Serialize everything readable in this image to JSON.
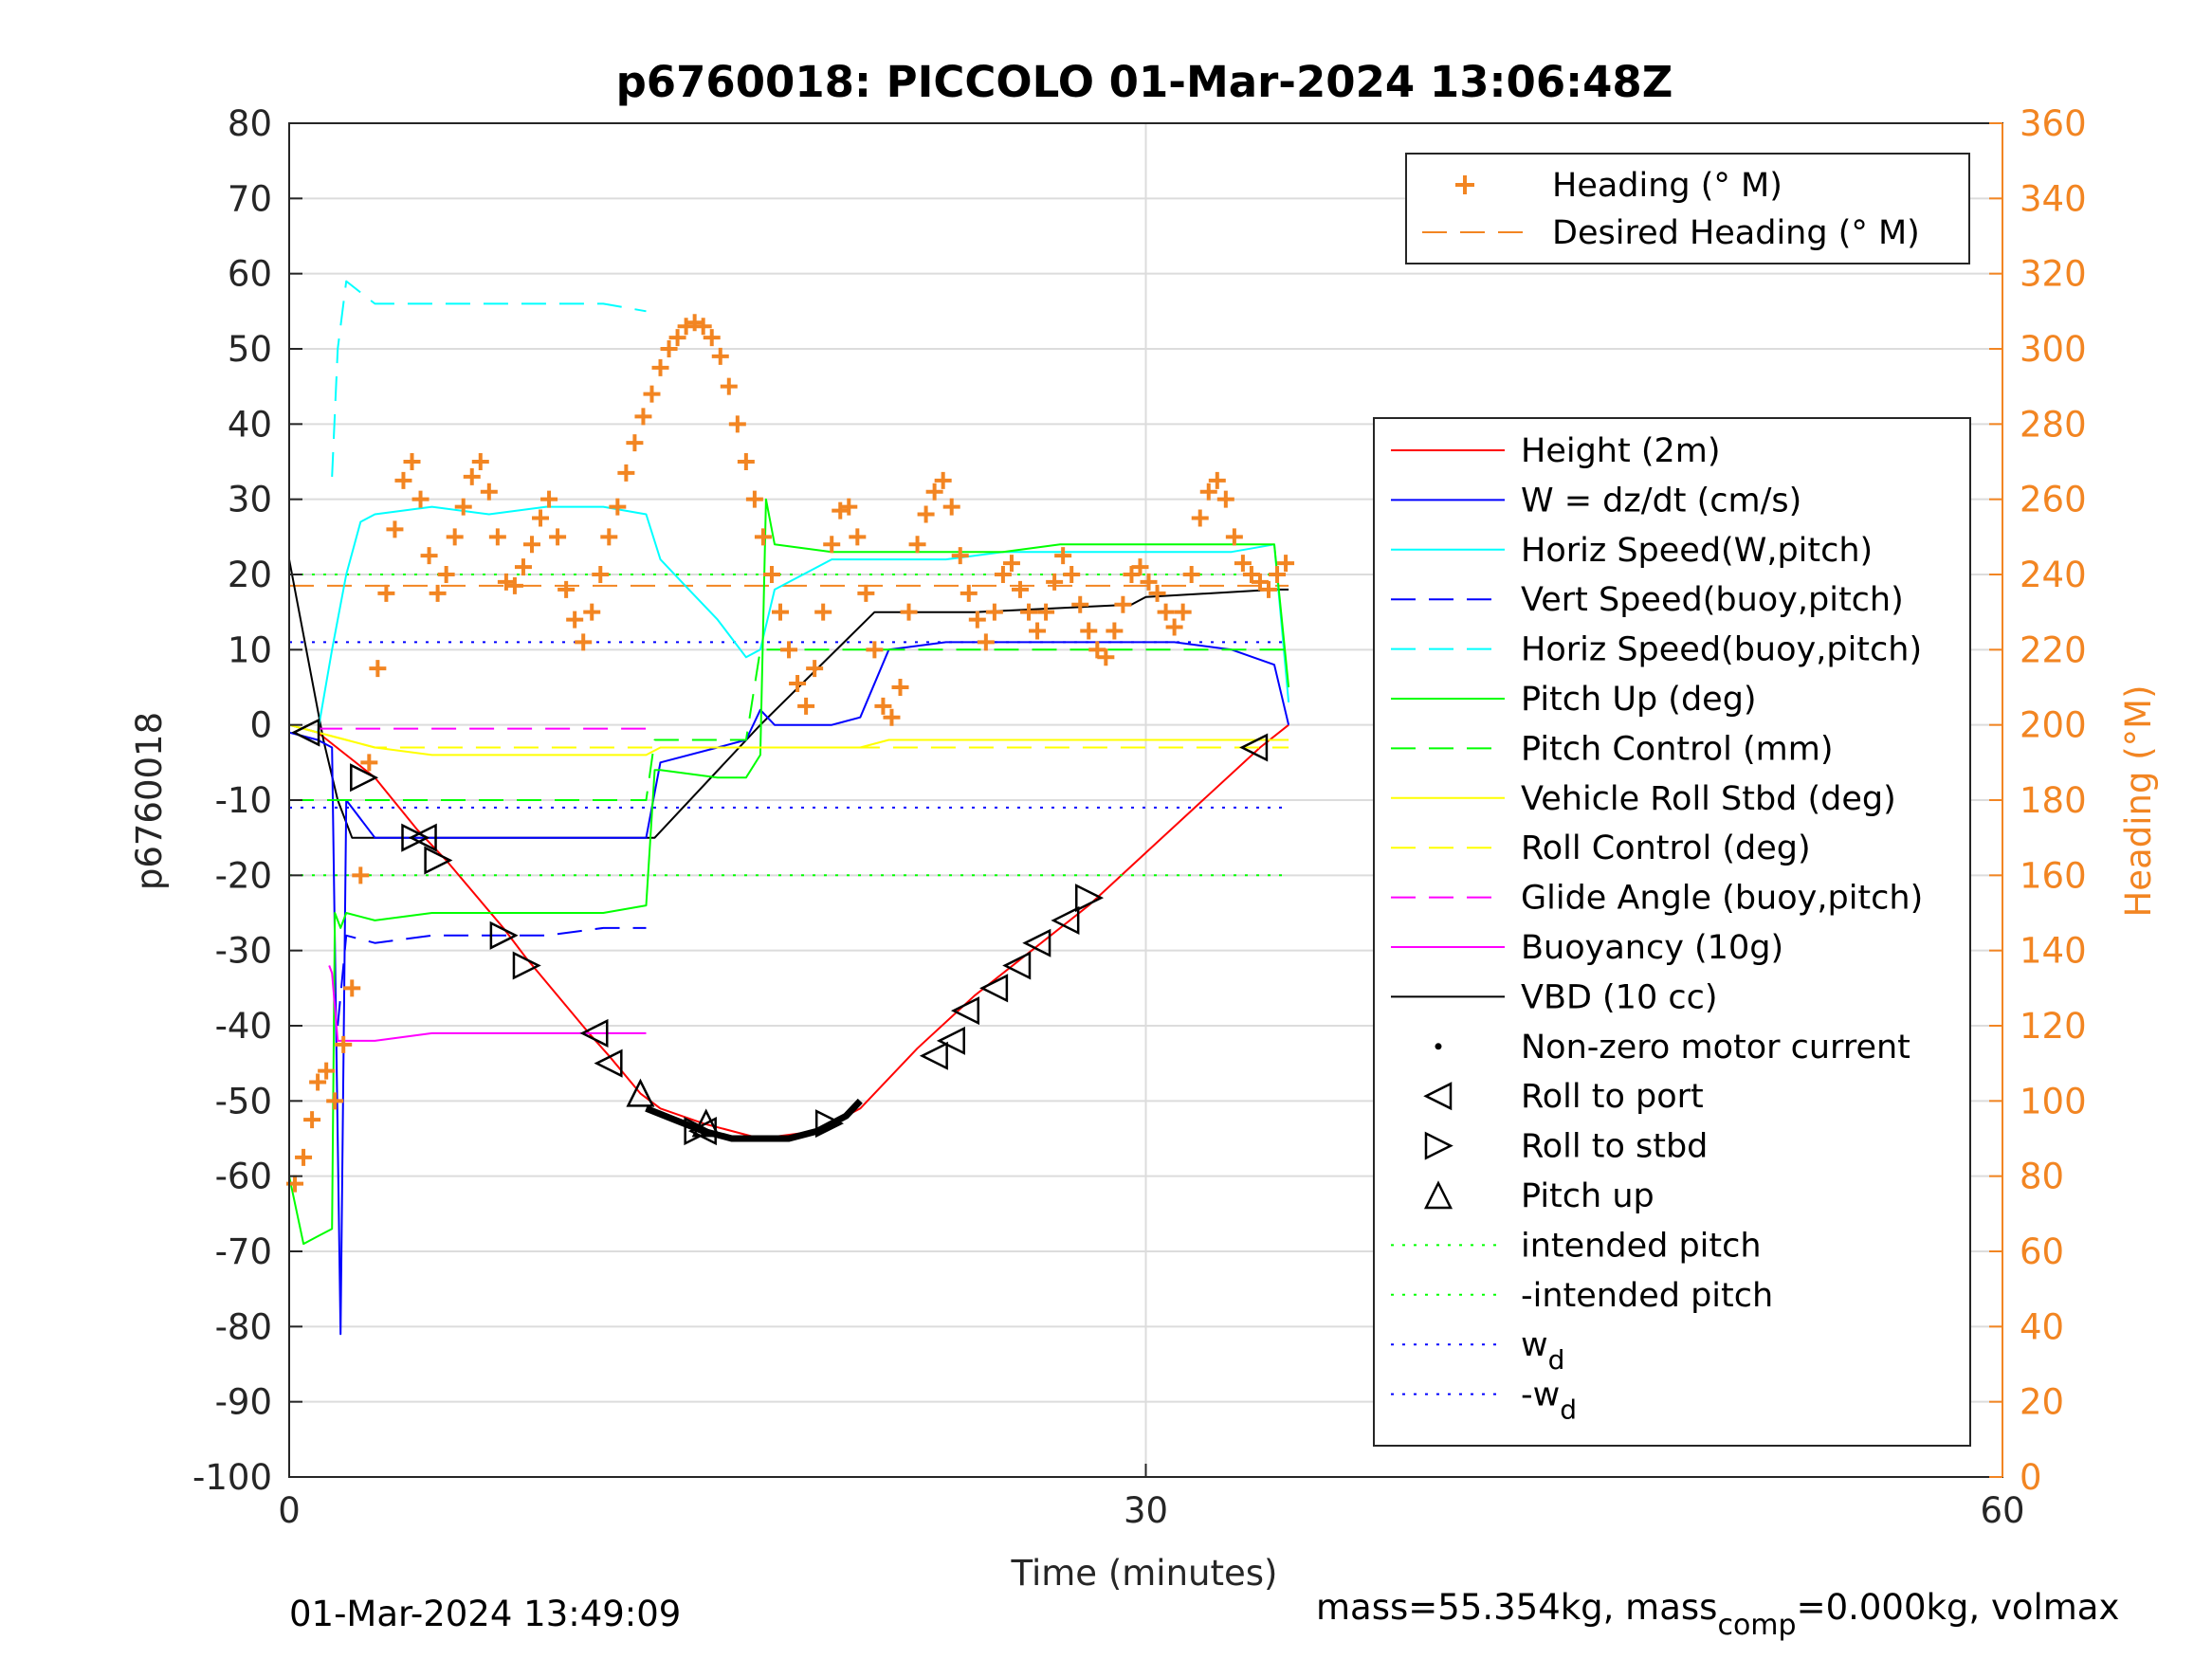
{
  "chart_data": {
    "type": "line",
    "title": "p6760018: PICCOLO 01-Mar-2024 13:06:48Z",
    "xlabel": "Time (minutes)",
    "ylabel": "p6760018",
    "ylabel_right": "Heading (°M)",
    "xlim": [
      0,
      60
    ],
    "ylim": [
      -100,
      80
    ],
    "ylim_right": [
      0,
      360
    ],
    "xticks": [
      "0",
      "30",
      "60"
    ],
    "yticks": [
      "-100",
      "-90",
      "-80",
      "-70",
      "-60",
      "-50",
      "-40",
      "-30",
      "-20",
      "-10",
      "0",
      "10",
      "20",
      "30",
      "40",
      "50",
      "60",
      "70",
      "80"
    ],
    "yticks_right": [
      "0",
      "20",
      "40",
      "60",
      "80",
      "100",
      "120",
      "140",
      "160",
      "180",
      "200",
      "220",
      "240",
      "260",
      "280",
      "300",
      "320",
      "340",
      "360"
    ],
    "grid": true,
    "footer_left": "01-Mar-2024 13:49:09",
    "footer_right": "mass=55.354kg, mass",
    "footer_sub": "comp",
    "footer_right2": "=0.000kg, volmax",
    "legend_heading": [
      {
        "label": "Heading (° M)",
        "color": "#f28522",
        "style": "plus"
      },
      {
        "label": "Desired Heading (° M)",
        "color": "#f28522",
        "style": "dash"
      }
    ],
    "legend_main": [
      {
        "label": "Height (2m)",
        "color": "#ff0000",
        "style": "solid"
      },
      {
        "label": "W = dz/dt (cm/s)",
        "color": "#0000ff",
        "style": "solid"
      },
      {
        "label": "Horiz Speed(W,pitch)",
        "color": "#00ffff",
        "style": "solid"
      },
      {
        "label": "Vert Speed(buoy,pitch)",
        "color": "#0000ff",
        "style": "dash"
      },
      {
        "label": "Horiz Speed(buoy,pitch)",
        "color": "#00ffff",
        "style": "dash"
      },
      {
        "label": "Pitch Up (deg)",
        "color": "#00ff00",
        "style": "solid"
      },
      {
        "label": "Pitch Control (mm)",
        "color": "#00ff00",
        "style": "dash"
      },
      {
        "label": "Vehicle Roll Stbd (deg)",
        "color": "#ffff00",
        "style": "solid"
      },
      {
        "label": "Roll Control (deg)",
        "color": "#ffff00",
        "style": "dash"
      },
      {
        "label": "Glide Angle (buoy,pitch)",
        "color": "#ff00ff",
        "style": "dash"
      },
      {
        "label": "Buoyancy (10g)",
        "color": "#ff00ff",
        "style": "solid"
      },
      {
        "label": "VBD (10 cc)",
        "color": "#000000",
        "style": "solid"
      },
      {
        "label": "Non-zero motor current",
        "color": "#000000",
        "style": "dot"
      },
      {
        "label": "Roll to port",
        "color": "#000000",
        "style": "tri-left"
      },
      {
        "label": "Roll to stbd",
        "color": "#000000",
        "style": "tri-right"
      },
      {
        "label": "Pitch up",
        "color": "#000000",
        "style": "tri-up"
      },
      {
        "label": "intended pitch",
        "color": "#00ff00",
        "style": "dotted"
      },
      {
        "label": "-intended pitch",
        "color": "#00ff00",
        "style": "dotted"
      },
      {
        "label": "w",
        "sub": "d",
        "color": "#0000ff",
        "style": "dotted"
      },
      {
        "label": "-w",
        "sub": "d",
        "color": "#0000ff",
        "style": "dotted"
      }
    ],
    "series": [
      {
        "name": "Height (2m)",
        "color": "#ff0000",
        "style": "solid",
        "x": [
          0,
          1.0,
          2.0,
          3.0,
          4.5,
          5.5,
          7.5,
          8.3,
          10.5,
          11.2,
          12.3,
          13.0,
          14.5,
          16.5,
          18.5,
          20.0,
          22.0,
          24.0,
          26.0,
          28.0,
          30.0,
          32.0,
          34.0,
          35.0
        ],
        "y": [
          0,
          -1,
          -4,
          -7,
          -14,
          -18,
          -27,
          -31,
          -41,
          -44,
          -49,
          -51,
          -53,
          -55,
          -54,
          -51,
          -43,
          -36,
          -30,
          -24,
          -17,
          -10,
          -3,
          0
        ]
      },
      {
        "name": "Pitch intended",
        "color": "#00ff00",
        "style": "dotted",
        "x": [
          0,
          35
        ],
        "y": [
          20,
          20
        ]
      },
      {
        "name": "-intended pitch",
        "color": "#00ff00",
        "style": "dotted",
        "x": [
          0,
          35
        ],
        "y": [
          -20,
          -20
        ]
      },
      {
        "name": "w_d",
        "color": "#0000ff",
        "style": "dotted",
        "x": [
          0,
          35
        ],
        "y": [
          11,
          11
        ]
      },
      {
        "name": "-w_d",
        "color": "#0000ff",
        "style": "dotted",
        "x": [
          0,
          35
        ],
        "y": [
          -11,
          -11
        ]
      },
      {
        "name": "Desired Heading (° M)",
        "color": "#f28522",
        "style": "dash",
        "axis": "right",
        "x": [
          0,
          35
        ],
        "y": [
          237,
          237
        ]
      },
      {
        "name": "VBD (10 cc)",
        "color": "#000000",
        "style": "solid",
        "x": [
          0,
          1.2,
          1.7,
          2.2,
          3.0,
          12.8,
          16.5,
          20.5,
          24.0,
          29.5,
          30.0,
          34.5,
          35.0
        ],
        "y": [
          22,
          -2,
          -10,
          -15,
          -15,
          -15,
          0,
          15,
          15,
          16,
          17,
          18,
          18
        ]
      },
      {
        "name": "W = dz/dt (cm/s)",
        "color": "#0000ff",
        "style": "solid",
        "x": [
          0,
          1.0,
          1.5,
          1.8,
          2.0,
          3.0,
          5.0,
          7.0,
          9.0,
          11.0,
          12.5,
          13.0,
          15.0,
          16.0,
          16.5,
          17.0,
          19.0,
          20.0,
          21.0,
          23.0,
          25.0,
          27.0,
          29.0,
          31.0,
          33.0,
          34.5,
          35.0
        ],
        "y": [
          -1,
          -2,
          -3,
          -81,
          -10,
          -15,
          -15,
          -15,
          -15,
          -15,
          -15,
          -5,
          -3,
          -2,
          2,
          0,
          0,
          1,
          10,
          11,
          11,
          11,
          11,
          11,
          10,
          8,
          0
        ]
      },
      {
        "name": "Horiz Speed(W,pitch)",
        "color": "#00ffff",
        "style": "solid",
        "x": [
          0,
          1.0,
          1.5,
          2.0,
          2.5,
          3.0,
          5.0,
          7.0,
          9.0,
          11.0,
          12.5,
          13.0,
          14.0,
          15.0,
          16.0,
          16.5,
          17.0,
          19.0,
          20.0,
          21.0,
          23.0,
          25.0,
          27.0,
          29.0,
          31.0,
          33.0,
          34.5,
          35.0
        ],
        "y": [
          0,
          -1,
          10,
          20,
          27,
          28,
          29,
          28,
          29,
          29,
          28,
          22,
          18,
          14,
          9,
          10,
          18,
          22,
          22,
          22,
          22,
          23,
          23,
          23,
          23,
          23,
          24,
          3
        ]
      },
      {
        "name": "Horiz Speed(buoy,pitch)",
        "color": "#00ffff",
        "style": "dash",
        "x": [
          1.5,
          1.7,
          2.0,
          3.0,
          5.0,
          7.0,
          9.0,
          11.0,
          12.5
        ],
        "y": [
          33,
          50,
          59,
          56,
          56,
          56,
          56,
          56,
          55
        ]
      },
      {
        "name": "Vert Speed(buoy,pitch)",
        "color": "#0000ff",
        "style": "dash",
        "x": [
          1.7,
          2.0,
          3.0,
          5.0,
          7.0,
          9.0,
          11.0,
          12.5
        ],
        "y": [
          -40,
          -28,
          -29,
          -28,
          -28,
          -28,
          -27,
          -27
        ]
      },
      {
        "name": "Pitch Up (deg)",
        "color": "#00ff00",
        "style": "solid",
        "x": [
          0,
          0.5,
          1.0,
          1.5,
          1.6,
          1.8,
          2.0,
          3.0,
          5.0,
          7.0,
          9.0,
          11.0,
          12.5,
          12.8,
          13.0,
          15.0,
          16.0,
          16.5,
          16.7,
          17.0,
          19.0,
          20.0,
          21.0,
          23.0,
          25.0,
          27.0,
          29.0,
          31.0,
          33.0,
          34.5,
          35.0
        ],
        "y": [
          -60,
          -69,
          -68,
          -67,
          -25,
          -27,
          -25,
          -26,
          -25,
          -25,
          -25,
          -25,
          -24,
          -6,
          -6,
          -7,
          -7,
          -4,
          30,
          24,
          23,
          23,
          23,
          23,
          23,
          24,
          24,
          24,
          24,
          24,
          5
        ]
      },
      {
        "name": "Pitch Control (mm)",
        "color": "#00ff00",
        "style": "dash",
        "x": [
          0,
          1.0,
          1.5,
          2.0,
          4.0,
          8.0,
          12.5,
          12.8,
          16.0,
          16.5,
          20.0,
          24.0,
          28.0,
          32.0,
          35.0
        ],
        "y": [
          -10,
          -10,
          -10,
          -10,
          -10,
          -10,
          -10,
          -2,
          -2,
          10,
          10,
          10,
          10,
          10,
          10
        ]
      },
      {
        "name": "Vehicle Roll Stbd (deg)",
        "color": "#ffff00",
        "style": "solid",
        "x": [
          0,
          1.0,
          2.0,
          3.0,
          5.0,
          7.0,
          9.0,
          11.0,
          12.5,
          13.0,
          15.0,
          17.0,
          19.0,
          20.0,
          21.0,
          23.0,
          25.0,
          27.0,
          29.0,
          31.0,
          33.0,
          35.0
        ],
        "y": [
          0,
          -1,
          -2,
          -3,
          -4,
          -4,
          -4,
          -4,
          -4,
          -3,
          -3,
          -3,
          -3,
          -3,
          -2,
          -2,
          -2,
          -2,
          -2,
          -2,
          -2,
          -2
        ]
      },
      {
        "name": "Roll Control (deg)",
        "color": "#ffff00",
        "style": "dash",
        "x": [
          0,
          1.0,
          2.0,
          3.0,
          5.0,
          7.0,
          9.0,
          11.0,
          12.5,
          13.0,
          15.0,
          17.0,
          19.0,
          20.0,
          21.0,
          23.0,
          25.0,
          27.0,
          29.0,
          31.0,
          33.0,
          35.0
        ],
        "y": [
          0,
          -1,
          -2,
          -3,
          -3,
          -3,
          -3,
          -3,
          -3,
          -3,
          -3,
          -3,
          -3,
          -3,
          -3,
          -3,
          -3,
          -3,
          -3,
          -3,
          -3,
          -3
        ]
      },
      {
        "name": "Glide Angle (buoy,pitch)",
        "color": "#ff00ff",
        "style": "dash",
        "x": [
          1.0,
          3.0,
          6.0,
          9.0,
          12.5
        ],
        "y": [
          -0.5,
          -0.5,
          -0.5,
          -0.5,
          -0.5
        ]
      },
      {
        "name": "Buoyancy (10g)",
        "color": "#ff00ff",
        "style": "solid",
        "x": [
          1.4,
          1.5,
          1.7,
          2.0,
          3.0,
          5.0,
          8.0,
          12.5
        ],
        "y": [
          -32,
          -33,
          -42,
          -42,
          -42,
          -41,
          -41,
          -41
        ]
      },
      {
        "name": "Heading (° M)",
        "color": "#f28522",
        "style": "plus",
        "axis": "right",
        "x": [
          0.2,
          0.5,
          0.8,
          1.0,
          1.3,
          1.6,
          1.9,
          2.2,
          2.5,
          2.8,
          3.1,
          3.4,
          3.7,
          4.0,
          4.3,
          4.6,
          4.9,
          5.2,
          5.5,
          5.8,
          6.1,
          6.4,
          6.7,
          7.0,
          7.3,
          7.6,
          7.9,
          8.2,
          8.5,
          8.8,
          9.1,
          9.4,
          9.7,
          10.0,
          10.3,
          10.6,
          10.9,
          11.2,
          11.5,
          11.8,
          12.1,
          12.4,
          12.7,
          13.0,
          13.3,
          13.6,
          13.9,
          14.2,
          14.5,
          14.8,
          15.1,
          15.4,
          15.7,
          16.0,
          16.3,
          16.6,
          16.9,
          17.2,
          17.5,
          17.8,
          18.1,
          18.4,
          18.7,
          19.0,
          19.3,
          19.6,
          19.9,
          20.2,
          20.5,
          20.8,
          21.1,
          21.4,
          21.7,
          22.0,
          22.3,
          22.6,
          22.9,
          23.2,
          23.5,
          23.8,
          24.1,
          24.4,
          24.7,
          25.0,
          25.3,
          25.6,
          25.9,
          26.2,
          26.5,
          26.8,
          27.1,
          27.4,
          27.7,
          28.0,
          28.3,
          28.6,
          28.9,
          29.2,
          29.5,
          29.8,
          30.1,
          30.4,
          30.7,
          31.0,
          31.3,
          31.6,
          31.9,
          32.2,
          32.5,
          32.8,
          33.1,
          33.4,
          33.7,
          34.0,
          34.3,
          34.6,
          34.9
        ],
        "y": [
          78,
          85,
          95,
          105,
          108,
          100,
          115,
          130,
          160,
          190,
          215,
          235,
          252,
          265,
          270,
          260,
          245,
          235,
          240,
          250,
          258,
          266,
          270,
          262,
          250,
          238,
          237,
          242,
          248,
          255,
          260,
          250,
          236,
          228,
          222,
          230,
          240,
          250,
          258,
          267,
          275,
          282,
          288,
          295,
          300,
          303,
          306,
          307,
          306,
          303,
          298,
          290,
          280,
          270,
          260,
          250,
          240,
          230,
          220,
          211,
          205,
          215,
          230,
          248,
          257,
          258,
          250,
          235,
          220,
          205,
          202,
          210,
          230,
          248,
          256,
          262,
          265,
          258,
          245,
          235,
          228,
          222,
          230,
          240,
          243,
          236,
          230,
          225,
          230,
          238,
          245,
          240,
          232,
          225,
          220,
          218,
          225,
          232,
          240,
          242,
          238,
          235,
          230,
          226,
          230,
          240,
          255,
          262,
          265,
          260,
          250,
          243,
          240,
          238,
          236,
          240,
          243
        ]
      },
      {
        "name": "Non-zero motor current",
        "color": "#000000",
        "style": "thick",
        "x": [
          12.5,
          13.5,
          14.5,
          15.5,
          16.5,
          17.5,
          18.5,
          19.5,
          20.0
        ],
        "y": [
          -51,
          -52.5,
          -54,
          -55,
          -55,
          -55,
          -54,
          -52,
          -50
        ]
      }
    ],
    "markers": {
      "roll_to_port": [
        [
          0.6,
          -1
        ],
        [
          4.7,
          -15
        ],
        [
          10.7,
          -41
        ],
        [
          11.2,
          -45
        ],
        [
          14.5,
          -54
        ],
        [
          22.6,
          -44
        ],
        [
          23.2,
          -42
        ],
        [
          23.7,
          -38
        ],
        [
          24.7,
          -35
        ],
        [
          25.5,
          -32
        ],
        [
          26.2,
          -29
        ],
        [
          27.2,
          -26
        ],
        [
          33.8,
          -3
        ]
      ],
      "roll_to_stbd": [
        [
          2.6,
          -7
        ],
        [
          4.4,
          -15
        ],
        [
          5.2,
          -18
        ],
        [
          7.5,
          -28
        ],
        [
          8.3,
          -32
        ],
        [
          14.3,
          -54
        ],
        [
          18.9,
          -53
        ],
        [
          28.0,
          -23
        ]
      ],
      "pitch_up": [
        [
          12.3,
          -49
        ],
        [
          14.6,
          -53
        ]
      ]
    }
  }
}
